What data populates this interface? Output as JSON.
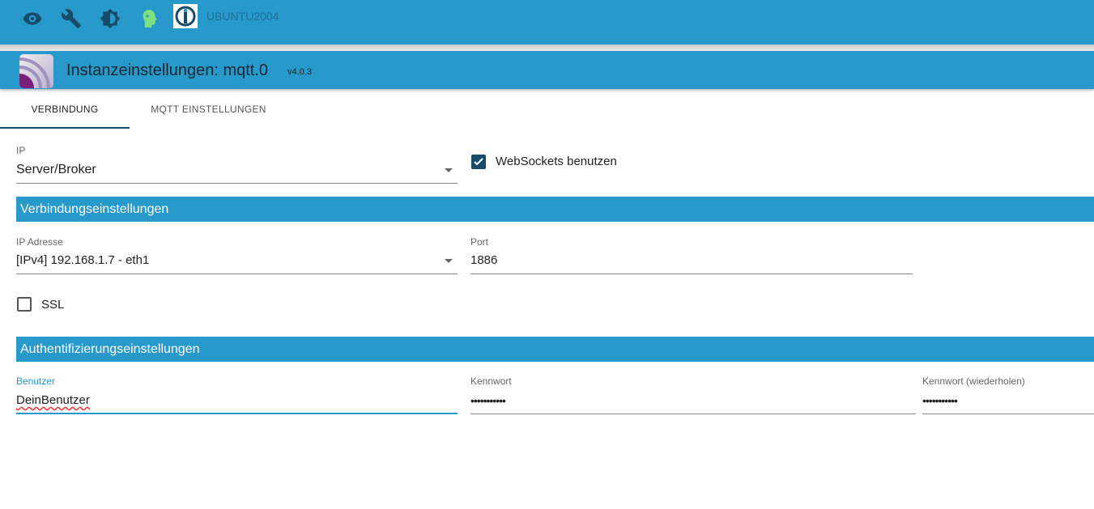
{
  "topbar": {
    "icons": [
      "eye-icon",
      "wrench-icon",
      "brightness-icon",
      "expert-head-icon"
    ],
    "hostname": "UBUNTU2004",
    "accent": "#2799ca"
  },
  "header": {
    "title": "Instanzeinstellungen: mqtt.0",
    "version": "v4.0.3"
  },
  "tabs": [
    {
      "label": "VERBINDUNG",
      "active": true
    },
    {
      "label": "MQTT EINSTELLUNGEN",
      "active": false
    }
  ],
  "form": {
    "ip_label": "IP",
    "ip_value": "Server/Broker",
    "websockets_label": "WebSockets benutzen",
    "websockets_checked": true,
    "section1": "Verbindungseinstellungen",
    "ipaddr_label": "IP Adresse",
    "ipaddr_value": "[IPv4] 192.168.1.7 - eth1",
    "port_label": "Port",
    "port_value": "1886",
    "ssl_label": "SSL",
    "ssl_checked": false,
    "section2": "Authentifizierungseinstellungen",
    "user_label": "Benutzer",
    "user_value": "DeinBenutzer",
    "pw_label": "Kennwort",
    "pw_value": "•••••••••••",
    "pw2_label": "Kennwort (wiederholen)",
    "pw2_value": "•••••••••••"
  }
}
